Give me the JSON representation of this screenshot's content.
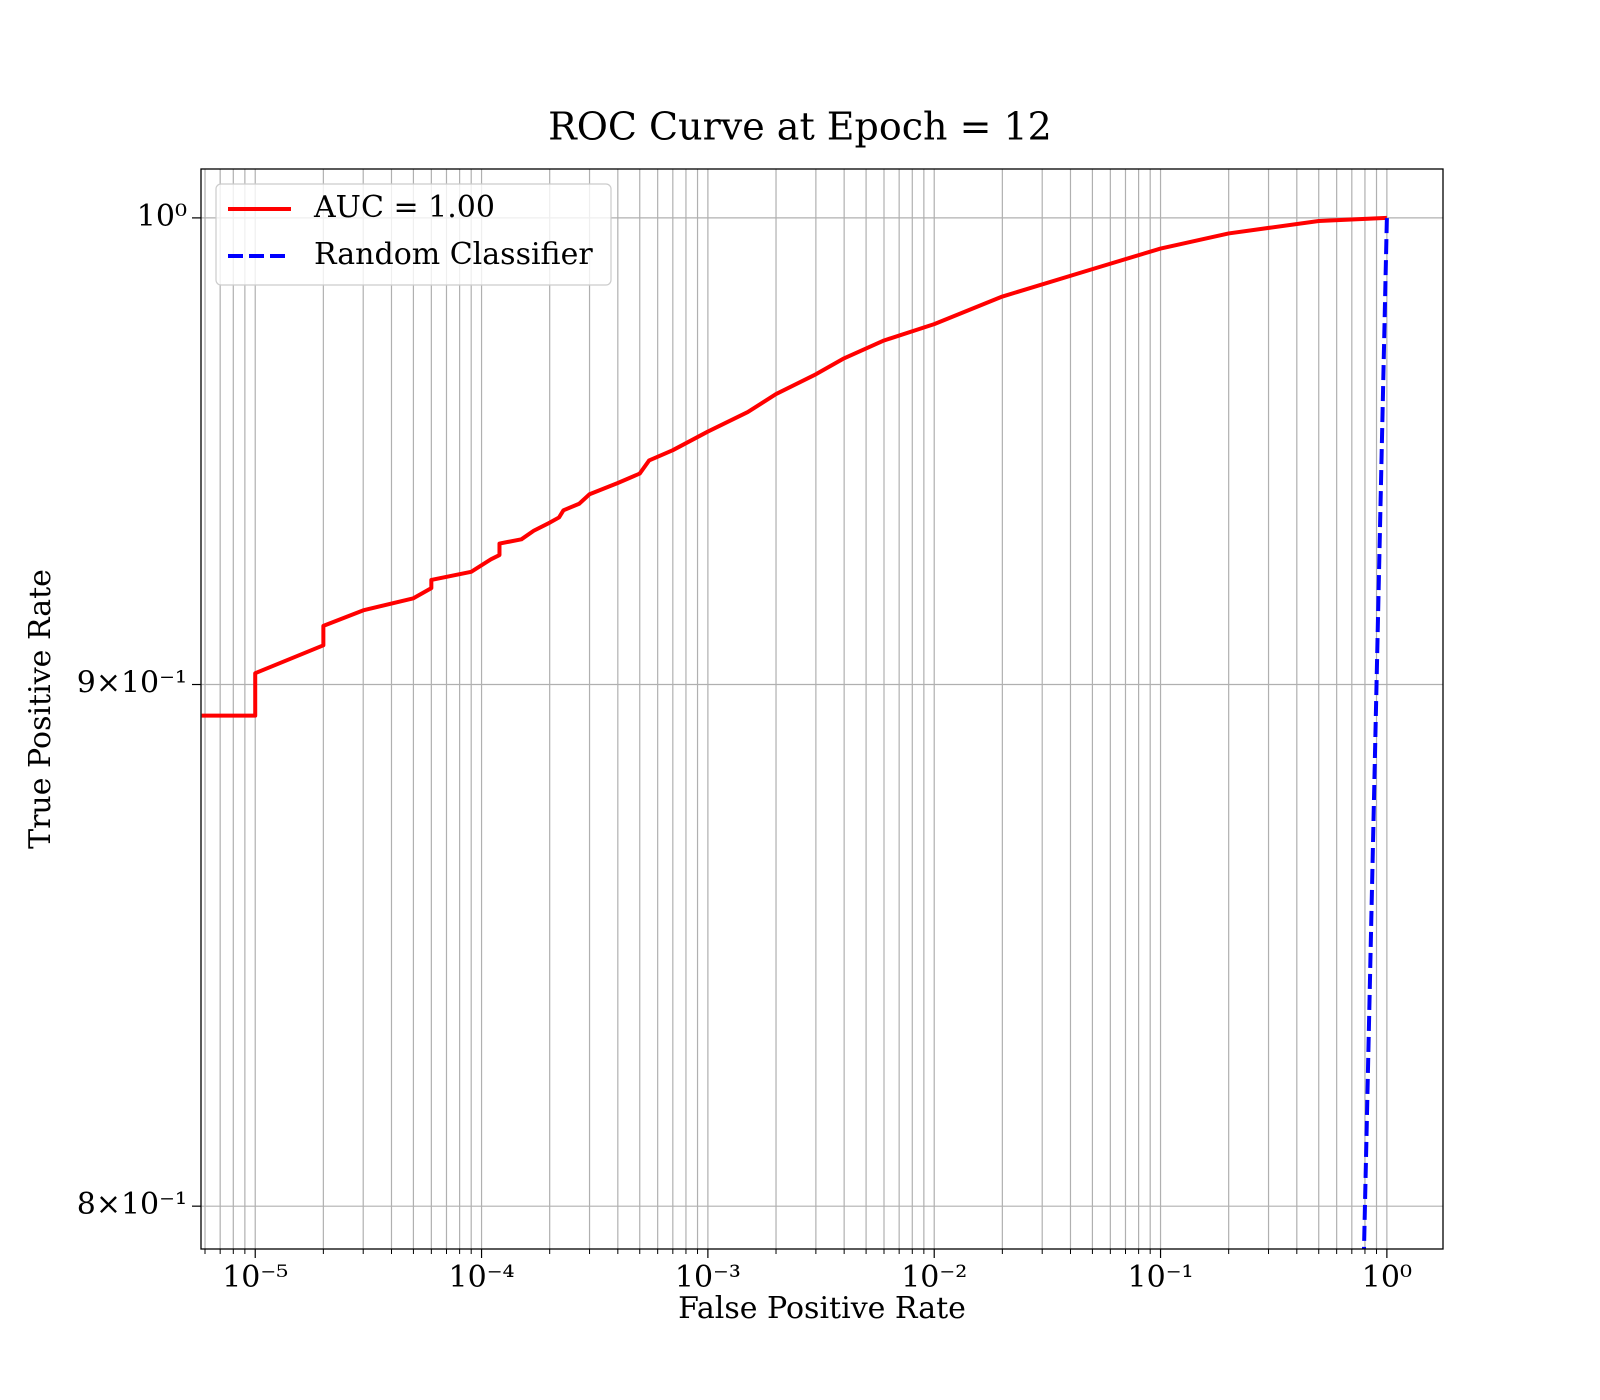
{
  "chart_data": {
    "type": "line",
    "title": "ROC Curve at Epoch = 12",
    "xlabel": "False Positive Rate",
    "ylabel": "True Positive Rate",
    "xscale": "log",
    "yscale": "log",
    "grid": true,
    "legend": "upper left",
    "xlim": [
      5.76e-06,
      1.77
    ],
    "ylim": [
      0.7923,
      1.0111
    ],
    "xticks": [
      {
        "value": 1e-05,
        "label": "10⁻⁵"
      },
      {
        "value": 0.0001,
        "label": "10⁻⁴"
      },
      {
        "value": 0.001,
        "label": "10⁻³"
      },
      {
        "value": 0.01,
        "label": "10⁻²"
      },
      {
        "value": 0.1,
        "label": "10⁻¹"
      },
      {
        "value": 1,
        "label": "10⁰"
      }
    ],
    "xminorticks": [
      6e-06,
      7e-06,
      8e-06,
      9e-06,
      2e-05,
      3e-05,
      4e-05,
      5e-05,
      6e-05,
      7e-05,
      8e-05,
      9e-05,
      0.0002,
      0.0003,
      0.0004,
      0.0005,
      0.0006,
      0.0007,
      0.0008,
      0.0009,
      0.002,
      0.003,
      0.004,
      0.005,
      0.006,
      0.007,
      0.008,
      0.009,
      0.02,
      0.03,
      0.04,
      0.05,
      0.06,
      0.07,
      0.08,
      0.09,
      0.2,
      0.3,
      0.4,
      0.5,
      0.6,
      0.7,
      0.8,
      0.9
    ],
    "yticks": [
      {
        "value": 1,
        "label": "10⁰"
      },
      {
        "value": 0.9,
        "label": "9×10⁻¹"
      },
      {
        "value": 0.8,
        "label": "8×10⁻¹"
      }
    ],
    "series": [
      {
        "name": "AUC = 1.00",
        "color": "#ff0000",
        "dashed": false,
        "x": [
          5.8e-06,
          1e-05,
          1e-05,
          2e-05,
          2e-05,
          3e-05,
          5e-05,
          6e-05,
          6e-05,
          9e-05,
          0.00011,
          0.00012,
          0.00012,
          0.00015,
          0.00017,
          0.0002,
          0.00022,
          0.00023,
          0.00027,
          0.0003,
          0.0004,
          0.0005,
          0.00055,
          0.0007,
          0.001,
          0.0015,
          0.002,
          0.003,
          0.004,
          0.006,
          0.01,
          0.02,
          0.05,
          0.1,
          0.2,
          0.5,
          1
        ],
        "values": [
          0.8937,
          0.8937,
          0.9023,
          0.908,
          0.912,
          0.9152,
          0.9177,
          0.9198,
          0.9215,
          0.9232,
          0.9258,
          0.9267,
          0.9291,
          0.93,
          0.9318,
          0.9335,
          0.9346,
          0.9361,
          0.9375,
          0.9395,
          0.9419,
          0.9439,
          0.9467,
          0.9489,
          0.9529,
          0.9571,
          0.961,
          0.9653,
          0.9688,
          0.9727,
          0.9763,
          0.9824,
          0.9885,
          0.9931,
          0.9965,
          0.9993,
          1.0
        ]
      },
      {
        "name": "Random Classifier",
        "color": "#0000ff",
        "dashed": true,
        "x": [
          0.79,
          1
        ],
        "values": [
          0.79,
          1
        ]
      }
    ]
  }
}
